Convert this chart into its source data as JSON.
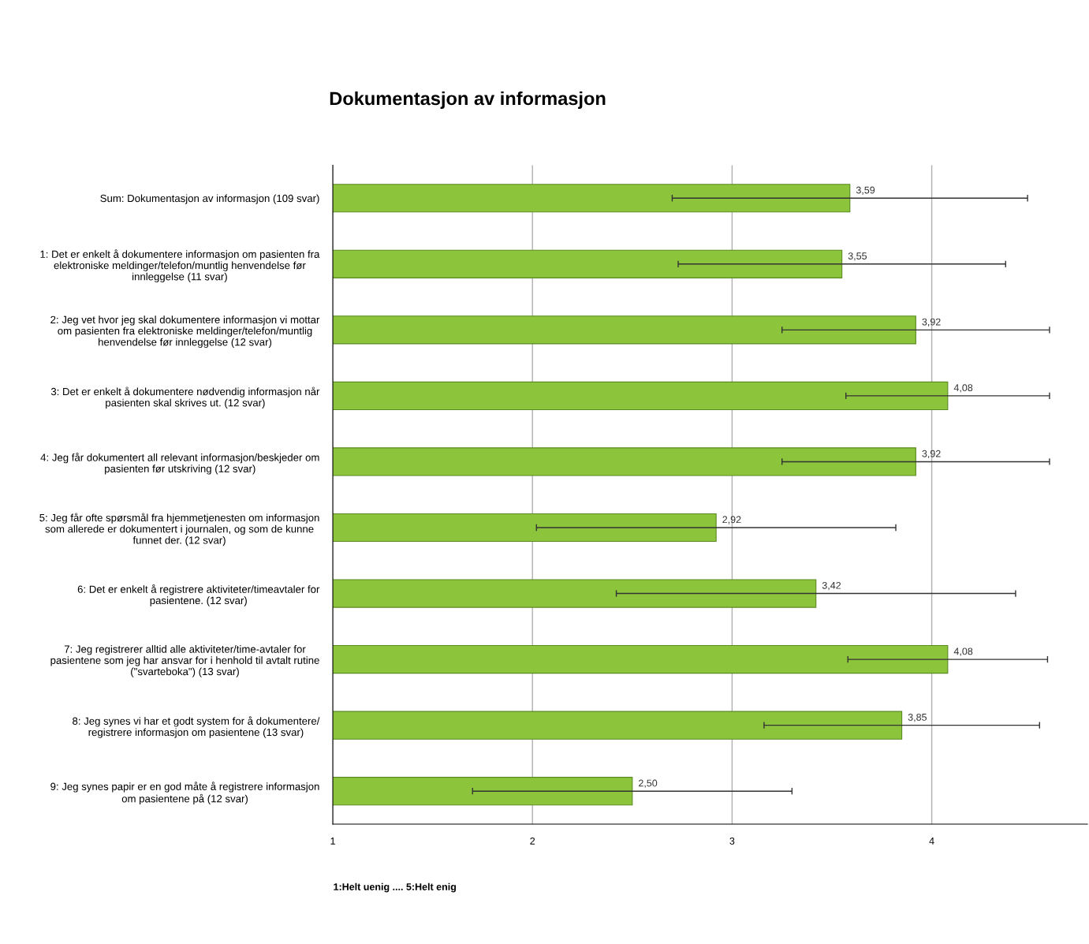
{
  "chart_data": {
    "type": "bar",
    "orientation": "horizontal",
    "title": "Dokumentasjon av informasjon",
    "categories": [
      "Sum: Dokumentasjon av informasjon (109 svar)",
      "1: Det er enkelt å dokumentere informasjon om pasienten fra\nelektroniske meldinger/telefon/muntlig henvendelse før\ninnleggelse (11 svar)",
      "2: Jeg vet hvor jeg skal dokumentere informasjon vi mottar\nom pasienten fra elektroniske meldinger/telefon/muntlig\nhenvendelse før innleggelse (12 svar)",
      "3: Det er enkelt å dokumentere nødvendig informasjon når\npasienten skal skrives ut. (12 svar)",
      "4: Jeg får dokumentert all relevant informasjon/beskjeder om\npasienten før utskriving (12 svar)",
      "5: Jeg får ofte spørsmål fra hjemmetjenesten om informasjon\nsom allerede er dokumentert i journalen, og som de kunne\nfunnet der. (12 svar)",
      "6: Det er enkelt å registrere aktiviteter/timeavtaler for\npasientene. (12 svar)",
      "7: Jeg registrerer alltid alle aktiviteter/time-avtaler for\npasientene som jeg har ansvar for i henhold til avtalt rutine\n(\"svarteboka\") (13 svar)",
      "8: Jeg synes vi har et godt system for å dokumentere/\nregistrere informasjon om pasientene (13 svar)",
      "9: Jeg synes papir er en god måte å registrere informasjon\nom pasientene på (12 svar)"
    ],
    "values": [
      3.59,
      3.55,
      3.92,
      4.08,
      3.92,
      2.92,
      3.42,
      4.08,
      3.85,
      2.5
    ],
    "value_labels": [
      "3,59",
      "3,55",
      "3,92",
      "4,08",
      "3,92",
      "2,92",
      "3,42",
      "4,08",
      "3,85",
      "2,50"
    ],
    "errors": [
      0.89,
      0.82,
      0.67,
      0.51,
      0.67,
      0.9,
      1.0,
      0.5,
      0.69,
      0.8
    ],
    "color": "#8cc43c",
    "xlim": [
      1,
      4.78
    ],
    "xticks": [
      1,
      2,
      3,
      4
    ],
    "grid": "x",
    "annotations": [
      "1:Helt uenig .... 5:Helt enig"
    ]
  }
}
